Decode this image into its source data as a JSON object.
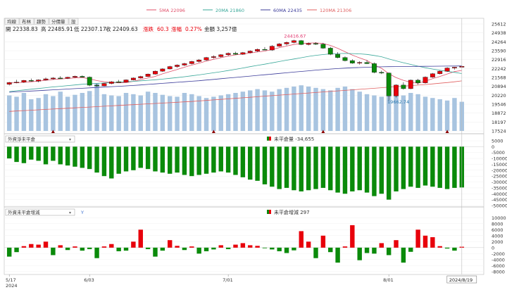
{
  "tabs": [
    {
      "label": "均線",
      "active": false
    },
    {
      "label": "布林",
      "active": false
    },
    {
      "label": "趨勢",
      "active": false
    },
    {
      "label": "分價量",
      "active": false
    },
    {
      "label": "設",
      "active": false
    }
  ],
  "ma_legend": [
    {
      "label": "5MA 22096",
      "color": "#e0506a"
    },
    {
      "label": "20MA 21860",
      "color": "#3aa89a"
    },
    {
      "label": "60MA 22435",
      "color": "#3c3c9a"
    },
    {
      "label": "120MA 21306",
      "color": "#e06060"
    }
  ],
  "ohlc_line": {
    "open": "開 22338.83",
    "high": "高 22485.91",
    "low": "低 22307.17",
    "close": "收 22409.63",
    "change_label": "漲跌",
    "change_value": "60.3",
    "pct_label": "漲幅",
    "pct_value": "0.27%",
    "amount": "金額 3,257億"
  },
  "annotations": {
    "high_label": "24416.67",
    "low_label": "19662.74"
  },
  "panel2": {
    "select": "外資淨未平倉",
    "legend_label": "未平倉量 -34,655"
  },
  "panel3": {
    "select": "外資未平倉增減",
    "extra": "Y",
    "legend_label": "未平倉增減 297"
  },
  "x_labels": [
    {
      "text": "5/17",
      "i": 0
    },
    {
      "text": "6/03",
      "i": 11
    },
    {
      "text": "7/01",
      "i": 30
    },
    {
      "text": "8/01",
      "i": 52
    }
  ],
  "year_label": "2024",
  "current_date_label": "2024/8/19",
  "colors": {
    "up": "#e8000b",
    "down": "#0a8a0a",
    "volume": "#a8c4e0",
    "marker": "#8b0000"
  },
  "chart_data": [
    {
      "type": "candlestick",
      "title": "",
      "y_ticks": [
        17524,
        18197,
        18872,
        19546,
        20220,
        20894,
        21568,
        22242,
        22916,
        23590,
        24264,
        24938,
        25612
      ],
      "ylim": [
        17524,
        25612
      ],
      "candles": [
        [
          21048,
          21230,
          20960,
          21180
        ],
        [
          21180,
          21390,
          21120,
          21210
        ],
        [
          21210,
          21380,
          21150,
          21340
        ],
        [
          21340,
          21480,
          21250,
          21290
        ],
        [
          21290,
          21420,
          21200,
          21380
        ],
        [
          21380,
          21560,
          21330,
          21460
        ],
        [
          21460,
          21590,
          21400,
          21520
        ],
        [
          21520,
          21660,
          21470,
          21500
        ],
        [
          21500,
          21620,
          21450,
          21580
        ],
        [
          21580,
          21700,
          21530,
          21650
        ],
        [
          21650,
          21720,
          21560,
          21590
        ],
        [
          21590,
          21640,
          20900,
          20980
        ],
        [
          20980,
          21080,
          20860,
          20930
        ],
        [
          20930,
          21150,
          20900,
          21110
        ],
        [
          21110,
          21290,
          21050,
          21240
        ],
        [
          21240,
          21380,
          21190,
          21210
        ],
        [
          21210,
          21420,
          21180,
          21380
        ],
        [
          21380,
          21570,
          21340,
          21520
        ],
        [
          21520,
          21690,
          21480,
          21640
        ],
        [
          21640,
          21860,
          21600,
          21820
        ],
        [
          21820,
          22090,
          21780,
          22040
        ],
        [
          22040,
          22260,
          21990,
          22210
        ],
        [
          22210,
          22450,
          22170,
          22390
        ],
        [
          22390,
          22560,
          22300,
          22500
        ],
        [
          22500,
          22680,
          22430,
          22610
        ],
        [
          22610,
          22820,
          22550,
          22770
        ],
        [
          22770,
          22960,
          22700,
          22890
        ],
        [
          22890,
          23120,
          22830,
          23070
        ],
        [
          23070,
          23240,
          22990,
          23140
        ],
        [
          23140,
          23330,
          23060,
          23280
        ],
        [
          23280,
          23460,
          23200,
          23390
        ],
        [
          23390,
          23510,
          23280,
          23320
        ],
        [
          23320,
          23490,
          23270,
          23440
        ],
        [
          23440,
          23620,
          23390,
          23560
        ],
        [
          23560,
          23750,
          23500,
          23690
        ],
        [
          23690,
          23860,
          23640,
          23640
        ],
        [
          23640,
          24010,
          23580,
          23930
        ],
        [
          23930,
          24170,
          23880,
          24100
        ],
        [
          24100,
          24280,
          23980,
          24210
        ],
        [
          24210,
          24417,
          24150,
          24350
        ],
        [
          24350,
          24400,
          24010,
          24060
        ],
        [
          24060,
          24210,
          23990,
          24130
        ],
        [
          24130,
          24230,
          24020,
          24080
        ],
        [
          24080,
          24180,
          23730,
          23780
        ],
        [
          23780,
          23880,
          23250,
          23320
        ],
        [
          23320,
          23480,
          23010,
          23070
        ],
        [
          23070,
          23160,
          22780,
          22840
        ],
        [
          22840,
          22940,
          22600,
          22650
        ],
        [
          22650,
          22790,
          22540,
          22700
        ],
        [
          22700,
          22860,
          22580,
          22610
        ],
        [
          22610,
          22700,
          21880,
          21950
        ],
        [
          21950,
          22080,
          21820,
          21900
        ],
        [
          21900,
          21940,
          19663,
          20170
        ],
        [
          20170,
          21050,
          20050,
          20990
        ],
        [
          20990,
          21200,
          20650,
          20720
        ],
        [
          20720,
          21410,
          20680,
          21360
        ],
        [
          21360,
          21460,
          21020,
          21160
        ],
        [
          21160,
          21650,
          21100,
          21590
        ],
        [
          21590,
          21900,
          21540,
          21850
        ],
        [
          21850,
          22090,
          21800,
          22040
        ],
        [
          22040,
          22340,
          21990,
          22280
        ],
        [
          22280,
          22360,
          22160,
          22340
        ],
        [
          22340,
          22486,
          22307,
          22410
        ]
      ],
      "volume": [
        56,
        54,
        60,
        50,
        52,
        58,
        55,
        62,
        54,
        57,
        60,
        63,
        75,
        58,
        56,
        55,
        60,
        58,
        56,
        62,
        60,
        57,
        55,
        54,
        60,
        58,
        55,
        52,
        54,
        56,
        58,
        60,
        62,
        64,
        66,
        64,
        62,
        66,
        68,
        70,
        72,
        70,
        68,
        66,
        64,
        68,
        70,
        66,
        62,
        58,
        56,
        54,
        62,
        58,
        56,
        60,
        58,
        54,
        52,
        50,
        48,
        52,
        46
      ],
      "volume_max": 80,
      "ma5": [
        21150,
        21170,
        21200,
        21240,
        21290,
        21350,
        21410,
        21450,
        21490,
        21530,
        21560,
        21460,
        21330,
        21240,
        21180,
        21160,
        21180,
        21270,
        21410,
        21520,
        21650,
        21840,
        22010,
        22170,
        22340,
        22500,
        22650,
        22800,
        22940,
        23060,
        23180,
        23270,
        23340,
        23410,
        23490,
        23560,
        23680,
        23820,
        23940,
        24060,
        24130,
        24160,
        24180,
        24130,
        23990,
        23770,
        23510,
        23260,
        23040,
        22850,
        22520,
        22260,
        21850,
        21560,
        21350,
        21200,
        21130,
        21290,
        21470,
        21640,
        21830,
        22010,
        22096
      ],
      "ma20": [
        20500,
        20560,
        20620,
        20680,
        20730,
        20790,
        20850,
        20900,
        20950,
        21000,
        21050,
        21090,
        21120,
        21150,
        21180,
        21210,
        21240,
        21270,
        21310,
        21350,
        21390,
        21440,
        21500,
        21560,
        21620,
        21690,
        21760,
        21840,
        21920,
        22000,
        22090,
        22180,
        22280,
        22380,
        22480,
        22570,
        22670,
        22770,
        22870,
        22960,
        23060,
        23160,
        23240,
        23300,
        23350,
        23370,
        23380,
        23370,
        23350,
        23310,
        23230,
        23130,
        22970,
        22820,
        22680,
        22550,
        22420,
        22300,
        22200,
        22110,
        22030,
        21950,
        21860
      ],
      "ma60": [
        20450,
        20480,
        20510,
        20540,
        20570,
        20600,
        20630,
        20660,
        20690,
        20720,
        20750,
        20780,
        20810,
        20840,
        20870,
        20900,
        20930,
        20960,
        21000,
        21040,
        21080,
        21120,
        21160,
        21200,
        21240,
        21280,
        21320,
        21370,
        21420,
        21470,
        21520,
        21570,
        21620,
        21670,
        21720,
        21770,
        21820,
        21870,
        21920,
        21970,
        22020,
        22070,
        22120,
        22160,
        22200,
        22240,
        22270,
        22300,
        22320,
        22340,
        22360,
        22370,
        22380,
        22390,
        22395,
        22400,
        22405,
        22410,
        22415,
        22420,
        22425,
        22430,
        22435
      ],
      "ma120": [
        19000,
        19030,
        19060,
        19090,
        19120,
        19150,
        19180,
        19210,
        19240,
        19270,
        19300,
        19330,
        19360,
        19390,
        19420,
        19450,
        19480,
        19510,
        19540,
        19570,
        19600,
        19630,
        19660,
        19690,
        19720,
        19750,
        19790,
        19830,
        19870,
        19910,
        19950,
        19990,
        20030,
        20070,
        20110,
        20150,
        20190,
        20230,
        20270,
        20310,
        20350,
        20390,
        20430,
        20470,
        20510,
        20550,
        20590,
        20630,
        20670,
        20710,
        20750,
        20790,
        20830,
        20870,
        20910,
        20950,
        20990,
        21030,
        21080,
        21130,
        21180,
        21240,
        21306
      ],
      "markers": [
        6,
        28,
        43,
        60
      ]
    },
    {
      "type": "bar",
      "title": "未平倉量",
      "y_ticks": [
        5000,
        0,
        -5000,
        -10000,
        -15000,
        -20000,
        -25000,
        -30000,
        -35000,
        -40000,
        -45000,
        -50000
      ],
      "ylim": [
        -50000,
        5000
      ],
      "values": [
        -10000,
        -13000,
        -14000,
        -11000,
        -12000,
        -15000,
        -12000,
        -15000,
        -16000,
        -17000,
        -18000,
        -19000,
        -22000,
        -25000,
        -27000,
        -23000,
        -21000,
        -20000,
        -18000,
        -19000,
        -21000,
        -22000,
        -23000,
        -22000,
        -24000,
        -25000,
        -24000,
        -23000,
        -22000,
        -21000,
        -22000,
        -24000,
        -26000,
        -28000,
        -29000,
        -32000,
        -34000,
        -36000,
        -35000,
        -37000,
        -38000,
        -37000,
        -36000,
        -35000,
        -37000,
        -39000,
        -40000,
        -38000,
        -37000,
        -39000,
        -42000,
        -40000,
        -45000,
        -38000,
        -36000,
        -34000,
        -35000,
        -33000,
        -34000,
        -35000,
        -36000,
        -35000,
        -34655
      ]
    },
    {
      "type": "bar",
      "title": "未平倉增減",
      "y_ticks": [
        10000,
        8000,
        6000,
        4000,
        2000,
        0,
        -2000,
        -4000,
        -6000,
        -8000
      ],
      "ylim": [
        -8500,
        11000
      ],
      "values": [
        -3000,
        -1500,
        500,
        1200,
        1000,
        2000,
        -2500,
        800,
        -800,
        400,
        -1000,
        -500,
        -3500,
        400,
        1200,
        -1200,
        -1000,
        2000,
        6000,
        -500,
        -3000,
        -1000,
        2500,
        600,
        -800,
        400,
        -2000,
        -1200,
        -600,
        800,
        -500,
        1000,
        1500,
        800,
        600,
        -200,
        -600,
        -1200,
        -1800,
        -900,
        5500,
        2000,
        -3500,
        4000,
        -1500,
        -5000,
        400,
        7500,
        -4200,
        -1800,
        -2000,
        1500,
        -2500,
        2500,
        -5000,
        -1400,
        6000,
        4000,
        3500,
        500,
        -300,
        -1000,
        297
      ]
    }
  ]
}
